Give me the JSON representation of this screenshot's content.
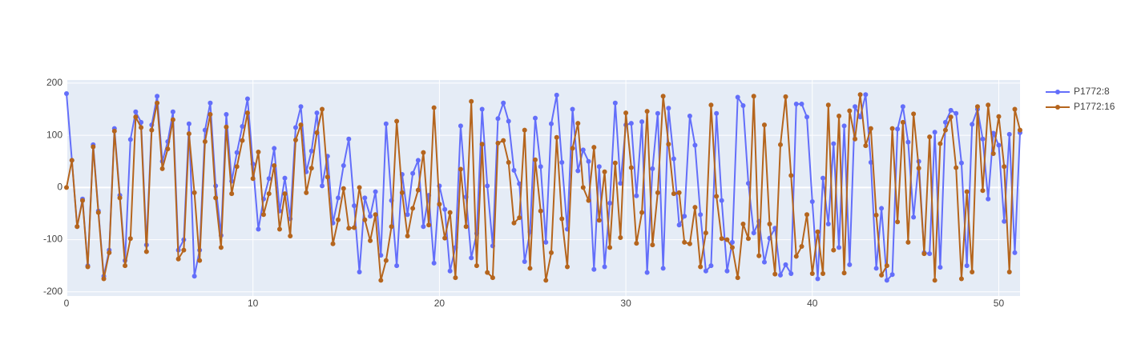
{
  "chart_data": {
    "type": "line",
    "x": [
      0,
      0.29,
      0.57,
      0.86,
      1.14,
      1.43,
      1.71,
      2,
      2.29,
      2.57,
      2.86,
      3.14,
      3.43,
      3.71,
      4,
      4.29,
      4.57,
      4.86,
      5.14,
      5.43,
      5.71,
      6,
      6.29,
      6.57,
      6.86,
      7.14,
      7.43,
      7.71,
      8,
      8.29,
      8.57,
      8.86,
      9.14,
      9.43,
      9.71,
      10,
      10.29,
      10.57,
      10.86,
      11.14,
      11.43,
      11.71,
      12,
      12.29,
      12.57,
      12.86,
      13.14,
      13.43,
      13.71,
      14,
      14.29,
      14.57,
      14.86,
      15.14,
      15.43,
      15.71,
      16,
      16.29,
      16.57,
      16.86,
      17.14,
      17.43,
      17.71,
      18,
      18.29,
      18.57,
      18.86,
      19.14,
      19.43,
      19.71,
      20,
      20.29,
      20.57,
      20.86,
      21.14,
      21.43,
      21.71,
      22,
      22.29,
      22.57,
      22.86,
      23.14,
      23.43,
      23.71,
      24,
      24.29,
      24.57,
      24.86,
      25.14,
      25.43,
      25.71,
      26,
      26.29,
      26.57,
      26.86,
      27.14,
      27.43,
      27.71,
      28,
      28.29,
      28.57,
      28.86,
      29.14,
      29.43,
      29.71,
      30,
      30.29,
      30.57,
      30.86,
      31.14,
      31.43,
      31.71,
      32,
      32.29,
      32.57,
      32.86,
      33.14,
      33.43,
      33.71,
      34,
      34.29,
      34.57,
      34.86,
      35.14,
      35.43,
      35.71,
      36,
      36.29,
      36.57,
      36.86,
      37.14,
      37.43,
      37.71,
      38,
      38.29,
      38.57,
      38.86,
      39.14,
      39.43,
      39.71,
      40,
      40.29,
      40.57,
      40.86,
      41.14,
      41.43,
      41.71,
      42,
      42.29,
      42.57,
      42.86,
      43.14,
      43.43,
      43.71,
      44,
      44.29,
      44.57,
      44.86,
      45.14,
      45.43,
      45.71,
      46,
      46.29,
      46.57,
      46.86,
      47.14,
      47.43,
      47.71,
      48,
      48.29,
      48.57,
      48.86,
      49.14,
      49.43,
      49.71,
      50,
      50.29,
      50.57,
      50.86,
      51.14
    ],
    "series": [
      {
        "name": "P1772:8",
        "color": "#636efa",
        "values": [
          180,
          52,
          -75,
          -22,
          -150,
          82,
          -45,
          -170,
          -120,
          113,
          -15,
          -140,
          92,
          145,
          125,
          -110,
          120,
          175,
          50,
          88,
          145,
          -120,
          -100,
          122,
          -170,
          -120,
          110,
          162,
          3,
          -92,
          140,
          12,
          67,
          117,
          170,
          45,
          -80,
          -22,
          17,
          75,
          -45,
          18,
          -60,
          115,
          155,
          30,
          70,
          143,
          3,
          60,
          -68,
          -20,
          42,
          93,
          -35,
          -162,
          -20,
          -55,
          -8,
          -130,
          122,
          -25,
          -150,
          25,
          -52,
          27,
          52,
          -75,
          -15,
          -145,
          3,
          -42,
          -160,
          -115,
          118,
          -18,
          -135,
          -88,
          150,
          3,
          -112,
          132,
          162,
          127,
          33,
          7,
          -142,
          -85,
          133,
          40,
          -105,
          122,
          177,
          48,
          -80,
          150,
          32,
          72,
          50,
          -157,
          40,
          -152,
          -30,
          162,
          8,
          120,
          123,
          -16,
          126,
          -163,
          36,
          142,
          -155,
          152,
          55,
          -72,
          -55,
          137,
          81,
          -52,
          -160,
          -150,
          142,
          -25,
          -160,
          -105,
          173,
          157,
          8,
          -87,
          -65,
          -143,
          -97,
          -78,
          -168,
          -148,
          -165,
          160,
          160,
          135,
          -27,
          -175,
          18,
          -70,
          84,
          -115,
          118,
          -148,
          155,
          135,
          178,
          48,
          -155,
          -40,
          -178,
          -167,
          112,
          155,
          87,
          -57,
          50,
          -125,
          -127,
          106,
          -153,
          125,
          148,
          142,
          47,
          -150,
          121,
          150,
          93,
          -22,
          104,
          81,
          -65,
          102,
          -125,
          105
        ]
      },
      {
        "name": "P1772:16",
        "color": "#b5651d",
        "values": [
          0,
          52,
          -75,
          -25,
          -152,
          78,
          -48,
          -175,
          -125,
          108,
          -20,
          -150,
          -98,
          135,
          115,
          -123,
          110,
          162,
          36,
          74,
          130,
          -137,
          -120,
          103,
          -10,
          -140,
          88,
          140,
          -20,
          -115,
          116,
          -12,
          40,
          90,
          143,
          17,
          68,
          -52,
          -12,
          42,
          -80,
          -12,
          -93,
          91,
          120,
          -10,
          37,
          105,
          150,
          20,
          -108,
          -62,
          -2,
          -78,
          -77,
          0,
          -62,
          -102,
          -52,
          -178,
          -140,
          -75,
          127,
          -10,
          -93,
          -40,
          -5,
          67,
          -72,
          153,
          -32,
          -97,
          -48,
          -173,
          35,
          -75,
          165,
          -150,
          83,
          -163,
          -173,
          85,
          90,
          48,
          -68,
          -58,
          110,
          -155,
          53,
          -45,
          -178,
          -125,
          96,
          -60,
          -152,
          75,
          123,
          0,
          -25,
          77,
          -63,
          30,
          -115,
          47,
          -96,
          143,
          38,
          -107,
          -48,
          146,
          -110,
          -10,
          175,
          83,
          -12,
          -10,
          -105,
          -108,
          -38,
          -152,
          -87,
          158,
          -17,
          -98,
          -100,
          -115,
          -173,
          -70,
          -98,
          175,
          -131,
          120,
          -70,
          -166,
          82,
          174,
          23,
          -132,
          -113,
          -52,
          -165,
          -85,
          -165,
          158,
          -120,
          137,
          -164,
          147,
          93,
          178,
          80,
          113,
          -53,
          -168,
          -150,
          113,
          -66,
          125,
          -105,
          141,
          37,
          -127,
          97,
          -178,
          84,
          110,
          135,
          38,
          -175,
          -8,
          -162,
          155,
          -6,
          158,
          65,
          136,
          40,
          -162,
          150,
          110
        ]
      }
    ],
    "xlim": [
      0,
      51.14
    ],
    "ylim": [
      -208,
      206
    ],
    "xticks": [
      0,
      10,
      20,
      30,
      40,
      50
    ],
    "yticks": [
      -200,
      -100,
      0,
      100,
      200
    ],
    "grid": true
  }
}
